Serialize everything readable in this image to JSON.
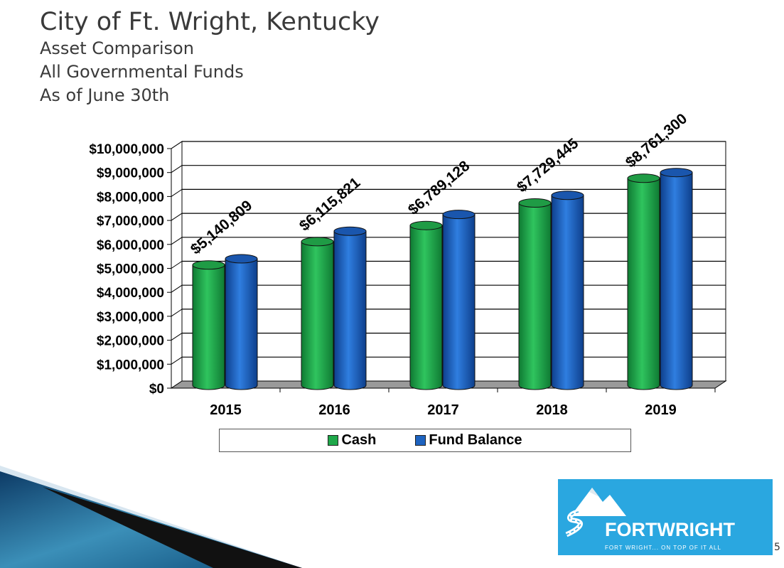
{
  "title": "City of Ft. Wright, Kentucky",
  "subtitle_lines": [
    "Asset Comparison",
    "All Governmental Funds",
    "As of June 30th"
  ],
  "colors": {
    "cash": "#1fa84a",
    "fund_balance": "#1d63c0",
    "floor": "#9a9a9a",
    "logo_bg": "#2aa7e0"
  },
  "chart_data": {
    "type": "bar",
    "categories": [
      "2015",
      "2016",
      "2017",
      "2018",
      "2019"
    ],
    "series": [
      {
        "name": "Cash",
        "values": [
          5140809,
          6115821,
          6789128,
          7729445,
          8761300
        ]
      },
      {
        "name": "Fund Balance",
        "values": [
          5400000,
          6550000,
          7250000,
          8050000,
          9000000
        ]
      }
    ],
    "data_labels": [
      "$5,140,809",
      "$6,115,821",
      "$6,789,128",
      "$7,729,445",
      "$8,761,300"
    ],
    "ytick_labels": [
      "$0",
      "$1,000,000",
      "$2,000,000",
      "$3,000,000",
      "$4,000,000",
      "$5,000,000",
      "$6,000,000",
      "$7,000,000",
      "$8,000,000",
      "$9,000,000",
      "$10,000,000"
    ],
    "ylim": [
      0,
      10000000
    ],
    "grid": true,
    "legend": "bottom"
  },
  "logo": {
    "name": "FORTWRIGHT",
    "tagline": "FORT WRIGHT... ON TOP OF IT ALL",
    "icon": "mountain-road-logo-icon"
  },
  "page_number": "5"
}
